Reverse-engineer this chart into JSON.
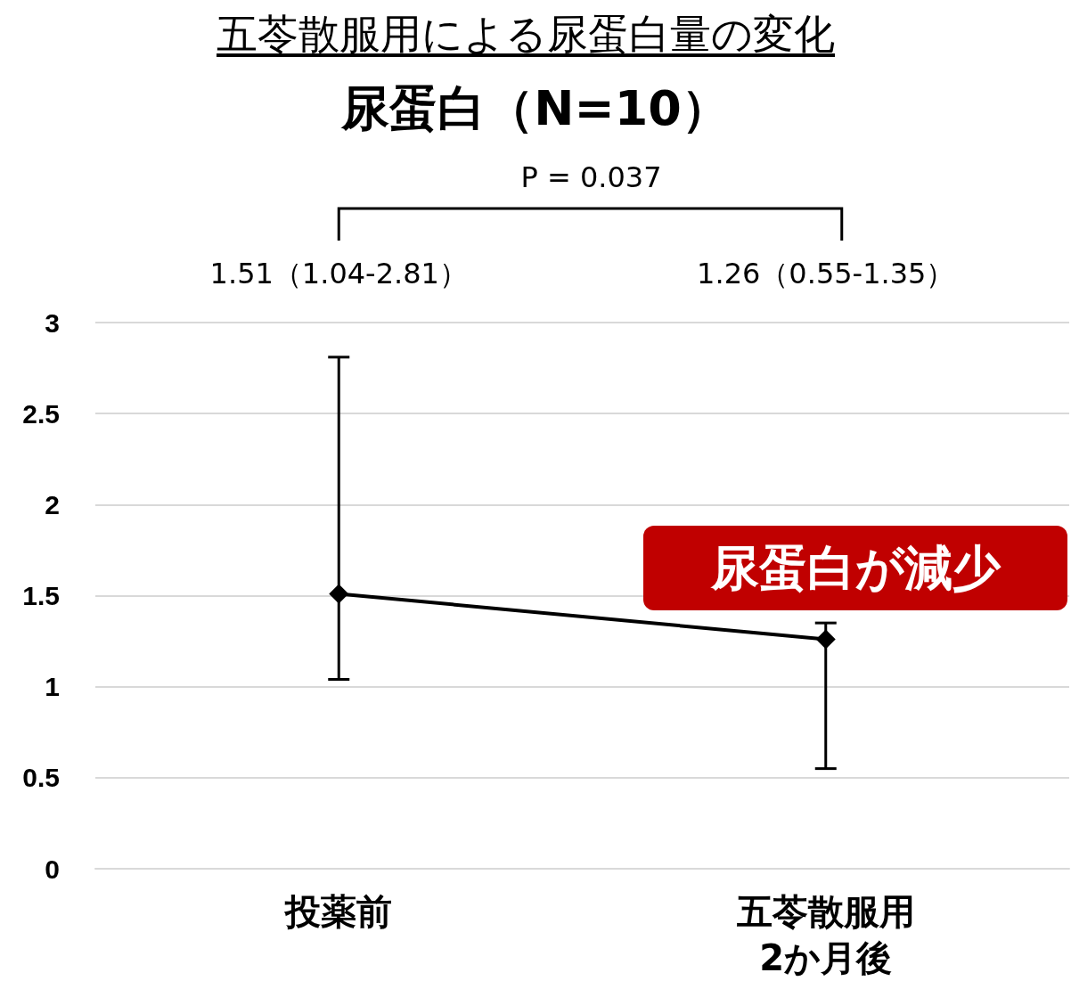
{
  "chart_data": {
    "type": "line",
    "title": "五苓散服用による尿蛋白量の変化",
    "subtitle": "尿蛋白（N=10）",
    "categories": [
      "投薬前",
      "五苓散服用2か月後"
    ],
    "series": [
      {
        "color": "#000000",
        "values": [
          1.51,
          1.26
        ],
        "errors": [
          [
            1.04,
            2.81
          ],
          [
            0.55,
            1.35
          ]
        ],
        "value_labels": [
          "1.51（1.04-2.81）",
          "1.26（0.55-1.35）"
        ]
      }
    ],
    "ylim": [
      0,
      3
    ],
    "yticks": [
      0,
      0.5,
      1,
      1.5,
      2,
      2.5,
      3
    ],
    "grid": "y",
    "marker": "diamond",
    "line_style": "solid",
    "annotations": [
      "P = 0.037",
      "尿蛋白が減少"
    ]
  }
}
